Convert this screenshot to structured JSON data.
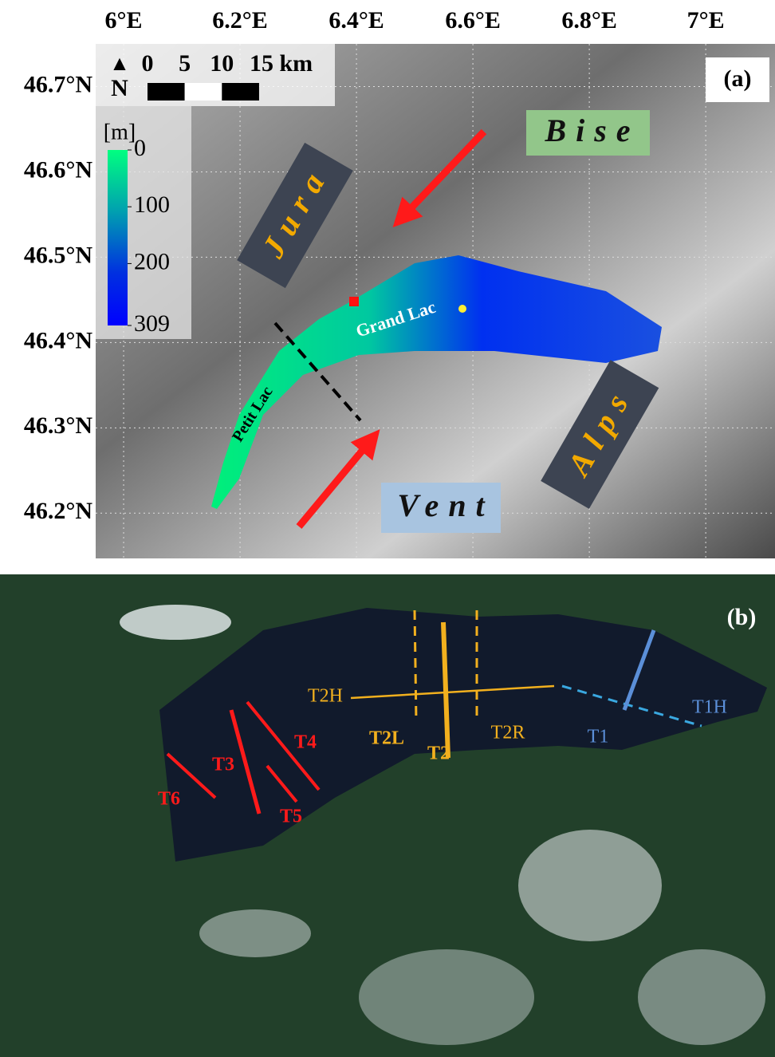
{
  "panel_a": {
    "label": "(a)",
    "lon_range": [
      5.952,
      7.119
    ],
    "lon_ticks": [
      {
        "value": 6,
        "label": "6°E"
      },
      {
        "value": 6.2,
        "label": "6.2°E"
      },
      {
        "value": 6.4,
        "label": "6.4°E"
      },
      {
        "value": 6.6,
        "label": "6.6°E"
      },
      {
        "value": 6.8,
        "label": "6.8°E"
      },
      {
        "value": 7,
        "label": "7°E"
      }
    ],
    "lat_range": [
      46.147,
      46.75
    ],
    "lat_ticks": [
      {
        "value": 46.7,
        "label": "46.7°N"
      },
      {
        "value": 46.6,
        "label": "46.6°N"
      },
      {
        "value": 46.5,
        "label": "46.5°N"
      },
      {
        "value": 46.4,
        "label": "46.4°N"
      },
      {
        "value": 46.3,
        "label": "46.3°N"
      },
      {
        "value": 46.2,
        "label": "46.2°N"
      }
    ],
    "scale_bar": {
      "ticks": [
        0,
        5,
        10,
        {
          "value": 15,
          "label": "15 km"
        }
      ],
      "north": "N"
    },
    "colorbar": {
      "unit": "[m]",
      "range": [
        0,
        309
      ],
      "ticks": [
        0,
        100,
        200,
        309
      ]
    },
    "labels": {
      "jura": "Jura",
      "bise": "Bise",
      "vent": "Vent",
      "alps": "Alps",
      "grand_lac": "Grand Lac",
      "petit_lac": "Petit Lac"
    }
  },
  "panel_b": {
    "label": "(b)",
    "transects": {
      "t1": "T1",
      "t1h": "T1H",
      "t2": "T2",
      "t2h": "T2H",
      "t2l": "T2L",
      "t2r": "T2R",
      "t3": "T3",
      "t4": "T4",
      "t5": "T5",
      "t6": "T6"
    }
  }
}
